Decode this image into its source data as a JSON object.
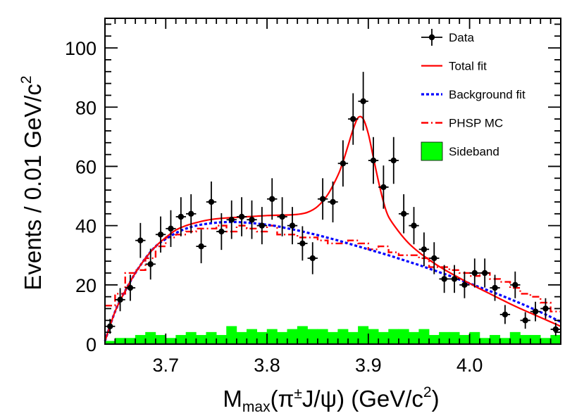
{
  "chart_data": {
    "type": "scatter",
    "title": "",
    "xlabel": {
      "main": "M",
      "sub": "max",
      "paren": "(π",
      "sup": "±",
      "rest": "J/ψ) (GeV/c",
      "sup2": "2",
      "close": ")"
    },
    "ylabel": {
      "main": "Events / 0.01 GeV/c",
      "sup": "2"
    },
    "xlim": [
      3.64,
      4.09
    ],
    "ylim": [
      0,
      110
    ],
    "x_ticks": [
      "3.7",
      "3.8",
      "3.9",
      "4.0"
    ],
    "x_tick_values": [
      3.7,
      3.8,
      3.9,
      4.0
    ],
    "y_ticks": [
      "0",
      "20",
      "40",
      "60",
      "80",
      "100"
    ],
    "y_tick_values": [
      0,
      20,
      40,
      60,
      80,
      100
    ],
    "legend": {
      "position": "top-right",
      "items": [
        {
          "label": "Data",
          "style": "marker",
          "color": "#000000"
        },
        {
          "label": "Total fit",
          "style": "solid",
          "color": "#ff0000"
        },
        {
          "label": "Background fit",
          "style": "dotted",
          "color": "#0000ff"
        },
        {
          "label": "PHSP MC",
          "style": "dashdot",
          "color": "#ff0000"
        },
        {
          "label": "Sideband",
          "style": "fill",
          "color": "#00ff00"
        }
      ]
    },
    "series": [
      {
        "name": "Data",
        "type": "points",
        "x": [
          3.645,
          3.655,
          3.665,
          3.675,
          3.685,
          3.695,
          3.705,
          3.715,
          3.725,
          3.735,
          3.745,
          3.755,
          3.765,
          3.775,
          3.785,
          3.795,
          3.805,
          3.815,
          3.825,
          3.835,
          3.845,
          3.855,
          3.865,
          3.875,
          3.885,
          3.895,
          3.905,
          3.915,
          3.925,
          3.935,
          3.945,
          3.955,
          3.965,
          3.975,
          3.985,
          3.995,
          4.005,
          4.015,
          4.025,
          4.035,
          4.045,
          4.055,
          4.065,
          4.075,
          4.085
        ],
        "y": [
          6,
          15,
          19,
          35,
          27,
          37,
          39,
          43,
          44,
          33,
          48,
          38,
          42,
          43,
          42,
          40,
          49,
          43,
          40,
          34,
          29,
          49,
          48,
          61,
          76,
          82,
          62,
          53,
          62,
          44,
          40,
          32,
          29,
          22,
          22,
          20,
          24,
          24,
          19,
          10,
          20,
          8,
          11,
          12,
          5
        ],
        "err": [
          2.5,
          3.9,
          4.4,
          5.9,
          5.2,
          6.1,
          6.2,
          6.6,
          6.6,
          5.7,
          6.9,
          6.2,
          6.5,
          6.6,
          6.5,
          6.3,
          7.0,
          6.6,
          6.3,
          5.8,
          5.4,
          7.0,
          6.9,
          7.8,
          8.7,
          9.9,
          7.9,
          7.3,
          7.9,
          6.6,
          6.3,
          5.7,
          5.4,
          4.7,
          4.7,
          4.5,
          4.9,
          4.9,
          4.4,
          3.2,
          4.5,
          2.8,
          3.3,
          3.5,
          2.2
        ],
        "color": "#000000"
      },
      {
        "name": "Total fit",
        "type": "line",
        "x": [
          3.64,
          3.65,
          3.66,
          3.67,
          3.68,
          3.69,
          3.7,
          3.71,
          3.72,
          3.73,
          3.74,
          3.75,
          3.76,
          3.77,
          3.78,
          3.79,
          3.8,
          3.81,
          3.82,
          3.83,
          3.84,
          3.85,
          3.86,
          3.87,
          3.875,
          3.88,
          3.885,
          3.89,
          3.895,
          3.9,
          3.905,
          3.91,
          3.915,
          3.92,
          3.93,
          3.94,
          3.95,
          3.96,
          3.97,
          3.98,
          3.99,
          4.0,
          4.01,
          4.02,
          4.03,
          4.04,
          4.05,
          4.06,
          4.07,
          4.08,
          4.09
        ],
        "y": [
          1,
          11,
          18,
          24,
          29,
          33,
          36,
          38.5,
          40,
          41,
          41.8,
          42.3,
          42.6,
          42.8,
          43,
          43.2,
          43.4,
          43.5,
          43.6,
          43.8,
          44.5,
          46.5,
          50.5,
          57,
          61.5,
          67,
          72.5,
          76.5,
          76,
          71,
          63,
          55,
          48,
          43,
          38,
          34,
          31,
          28.5,
          26.2,
          24.2,
          22.3,
          20.5,
          18.7,
          17,
          15.3,
          13.6,
          12,
          10.5,
          9,
          7.5,
          6
        ],
        "color": "#ff0000"
      },
      {
        "name": "Background fit",
        "type": "line",
        "x": [
          3.64,
          3.65,
          3.66,
          3.67,
          3.68,
          3.69,
          3.7,
          3.71,
          3.72,
          3.73,
          3.74,
          3.75,
          3.76,
          3.77,
          3.78,
          3.79,
          3.8,
          3.81,
          3.82,
          3.83,
          3.84,
          3.85,
          3.86,
          3.87,
          3.88,
          3.89,
          3.9,
          3.91,
          3.92,
          3.93,
          3.94,
          3.95,
          3.96,
          3.97,
          3.98,
          3.99,
          4.0,
          4.01,
          4.02,
          4.03,
          4.04,
          4.05,
          4.06,
          4.07,
          4.08,
          4.09
        ],
        "y": [
          1,
          11,
          18,
          24,
          29,
          33,
          35.5,
          37.5,
          39,
          40,
          40.6,
          41,
          41.2,
          41.2,
          41,
          40.7,
          40.3,
          39.8,
          39.1,
          38.4,
          37.6,
          36.8,
          35.9,
          35,
          34,
          33,
          32,
          31,
          30,
          28.9,
          27.8,
          26.7,
          25.5,
          24.3,
          23.1,
          21.8,
          20.5,
          19.2,
          17.9,
          16.6,
          15.2,
          13.8,
          12.3,
          10.8,
          9.2,
          7.5
        ],
        "color": "#0000ff"
      },
      {
        "name": "PHSP MC",
        "type": "step",
        "x_edges": [
          3.64,
          3.65,
          3.66,
          3.67,
          3.68,
          3.69,
          3.7,
          3.71,
          3.72,
          3.73,
          3.74,
          3.75,
          3.76,
          3.77,
          3.78,
          3.79,
          3.8,
          3.81,
          3.82,
          3.83,
          3.84,
          3.85,
          3.86,
          3.87,
          3.88,
          3.89,
          3.9,
          3.91,
          3.92,
          3.93,
          3.94,
          3.95,
          3.96,
          3.97,
          3.98,
          3.99,
          4.0,
          4.01,
          4.02,
          4.03,
          4.04,
          4.05,
          4.06,
          4.07,
          4.08,
          4.09
        ],
        "y": [
          13,
          17,
          24,
          25,
          29,
          33,
          36,
          37,
          38,
          39,
          39,
          40,
          38,
          40,
          39,
          38,
          40,
          37,
          37,
          36,
          36,
          35,
          34,
          34,
          35,
          34,
          32,
          33,
          31,
          30,
          30,
          29,
          26,
          26,
          25,
          24,
          23,
          24,
          22,
          21,
          19,
          17,
          16,
          14,
          11
        ],
        "color": "#ff0000"
      },
      {
        "name": "Sideband",
        "type": "histogram",
        "x_edges": [
          3.64,
          3.65,
          3.66,
          3.67,
          3.68,
          3.69,
          3.7,
          3.71,
          3.72,
          3.73,
          3.74,
          3.75,
          3.76,
          3.77,
          3.78,
          3.79,
          3.8,
          3.81,
          3.82,
          3.83,
          3.84,
          3.85,
          3.86,
          3.87,
          3.88,
          3.89,
          3.9,
          3.91,
          3.92,
          3.93,
          3.94,
          3.95,
          3.96,
          3.97,
          3.98,
          3.99,
          4.0,
          4.01,
          4.02,
          4.03,
          4.04,
          4.05,
          4.06,
          4.07,
          4.08,
          4.09
        ],
        "y": [
          1,
          2,
          2,
          3,
          4,
          3,
          2,
          3,
          4,
          3,
          4,
          3,
          6,
          4,
          5,
          4,
          5,
          4,
          5,
          6,
          5,
          5,
          4,
          5,
          4,
          6,
          5,
          4,
          5,
          5,
          4,
          5,
          3,
          4,
          4,
          3,
          4,
          2,
          3,
          2,
          4,
          3,
          3,
          2,
          3
        ],
        "color": "#00ff00"
      }
    ]
  }
}
